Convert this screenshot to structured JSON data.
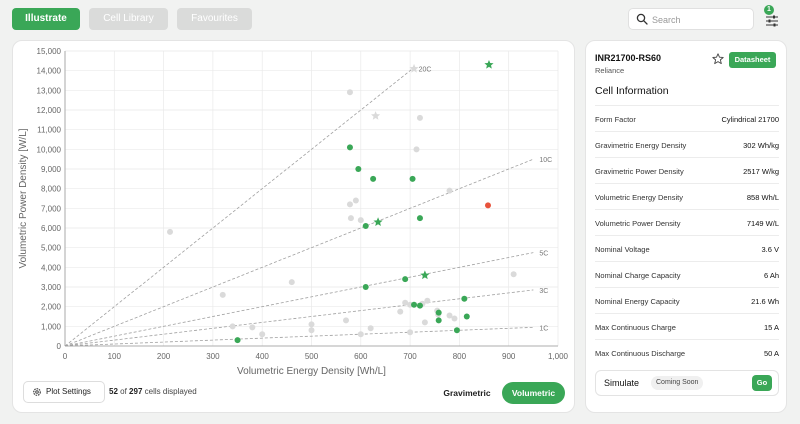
{
  "colors": {
    "accent": "#3aa757",
    "highlight": "#e8533c",
    "inactive_point": "#d8d8d8"
  },
  "tabs": [
    {
      "label": "Illustrate",
      "active": true
    },
    {
      "label": "Cell Library",
      "active": false
    },
    {
      "label": "Favourites",
      "active": false
    }
  ],
  "search": {
    "placeholder": "Search",
    "value": "",
    "icon": "search-icon"
  },
  "filter": {
    "badge": "1",
    "icon": "sliders-icon"
  },
  "bottom": {
    "plot_settings": "Plot Settings",
    "shown": "52",
    "of": "of",
    "total": "297",
    "suffix": "cells displayed",
    "toggle_gravimetric": "Gravimetric",
    "toggle_volumetric": "Volumetric",
    "active_toggle": "Volumetric"
  },
  "cell": {
    "name": "INR21700-RS60",
    "brand": "Reliance",
    "datasheet_label": "Datasheet",
    "info_title": "Cell Information",
    "rows": [
      {
        "label": "Form Factor",
        "value": "Cylindrical 21700"
      },
      {
        "label": "Gravimetric Energy Density",
        "value": "302 Wh/kg"
      },
      {
        "label": "Gravimetric Power Density",
        "value": "2517 W/kg"
      },
      {
        "label": "Volumetric Energy Density",
        "value": "858 Wh/L"
      },
      {
        "label": "Volumetric Power Density",
        "value": "7149 W/L"
      },
      {
        "label": "Nominal Voltage",
        "value": "3.6 V"
      },
      {
        "label": "Nominal Charge Capacity",
        "value": "6 Ah"
      },
      {
        "label": "Nominal Energy Capacity",
        "value": "21.6 Wh"
      },
      {
        "label": "Max Continuous Charge",
        "value": "15 A"
      },
      {
        "label": "Max Continuous Discharge",
        "value": "50 A"
      }
    ],
    "simulate_label": "Simulate",
    "coming_soon": "Coming Soon",
    "go_label": "Go"
  },
  "chart_data": {
    "type": "scatter",
    "xlabel": "Volumetric Energy Density [Wh/L]",
    "ylabel": "Volumetric Power Density [W/L]",
    "xlim": [
      0,
      1000
    ],
    "ylim": [
      0,
      15000
    ],
    "xticks": [
      "0",
      "100",
      "200",
      "300",
      "400",
      "500",
      "600",
      "700",
      "800",
      "900",
      "1,000"
    ],
    "yticks": [
      "0",
      "1,000",
      "2,000",
      "3,000",
      "4,000",
      "5,000",
      "6,000",
      "7,000",
      "8,000",
      "9,000",
      "10,000",
      "11,000",
      "12,000",
      "13,000",
      "14,000",
      "15,000"
    ],
    "grid": true,
    "c_rate_lines": [
      {
        "label": "20C",
        "rate": 20
      },
      {
        "label": "10C",
        "rate": 10
      },
      {
        "label": "5C",
        "rate": 5
      },
      {
        "label": "3C",
        "rate": 3
      },
      {
        "label": "1C",
        "rate": 1
      }
    ],
    "series": [
      {
        "status": "inactive",
        "points": [
          [
            213,
            5800
          ],
          [
            578,
            12900
          ],
          [
            720,
            11600
          ],
          [
            713,
            10000
          ],
          [
            578,
            7200
          ],
          [
            590,
            7400
          ],
          [
            580,
            6500
          ],
          [
            600,
            6400
          ],
          [
            780,
            7900
          ],
          [
            910,
            3650
          ],
          [
            320,
            2600
          ],
          [
            690,
            2200
          ],
          [
            700,
            2100
          ],
          [
            725,
            2150
          ],
          [
            757,
            1600
          ],
          [
            780,
            1550
          ],
          [
            790,
            1400
          ],
          [
            730,
            1200
          ],
          [
            700,
            700
          ],
          [
            620,
            900
          ],
          [
            460,
            3250
          ],
          [
            735,
            2300
          ],
          [
            755,
            1800
          ],
          [
            570,
            1300
          ],
          [
            500,
            1100
          ],
          [
            340,
            1000
          ],
          [
            380,
            950
          ],
          [
            500,
            800
          ],
          [
            600,
            600
          ],
          [
            400,
            600
          ],
          [
            680,
            1750
          ]
        ]
      },
      {
        "status": "inactive_starred",
        "points": [
          [
            630,
            11700
          ],
          [
            708,
            14100
          ]
        ]
      },
      {
        "status": "active",
        "points": [
          [
            578,
            10100
          ],
          [
            595,
            9000
          ],
          [
            625,
            8500
          ],
          [
            705,
            8500
          ],
          [
            610,
            6100
          ],
          [
            720,
            6500
          ],
          [
            610,
            3000
          ],
          [
            690,
            3400
          ],
          [
            708,
            2100
          ],
          [
            720,
            2050
          ],
          [
            810,
            2400
          ],
          [
            758,
            1700
          ],
          [
            758,
            1300
          ],
          [
            815,
            1500
          ],
          [
            795,
            800
          ],
          [
            350,
            300
          ]
        ]
      },
      {
        "status": "active_starred",
        "points": [
          [
            860,
            14300
          ],
          [
            635,
            6300
          ],
          [
            730,
            3600
          ]
        ]
      },
      {
        "status": "selected",
        "points": [
          [
            858,
            7149
          ]
        ]
      }
    ]
  }
}
